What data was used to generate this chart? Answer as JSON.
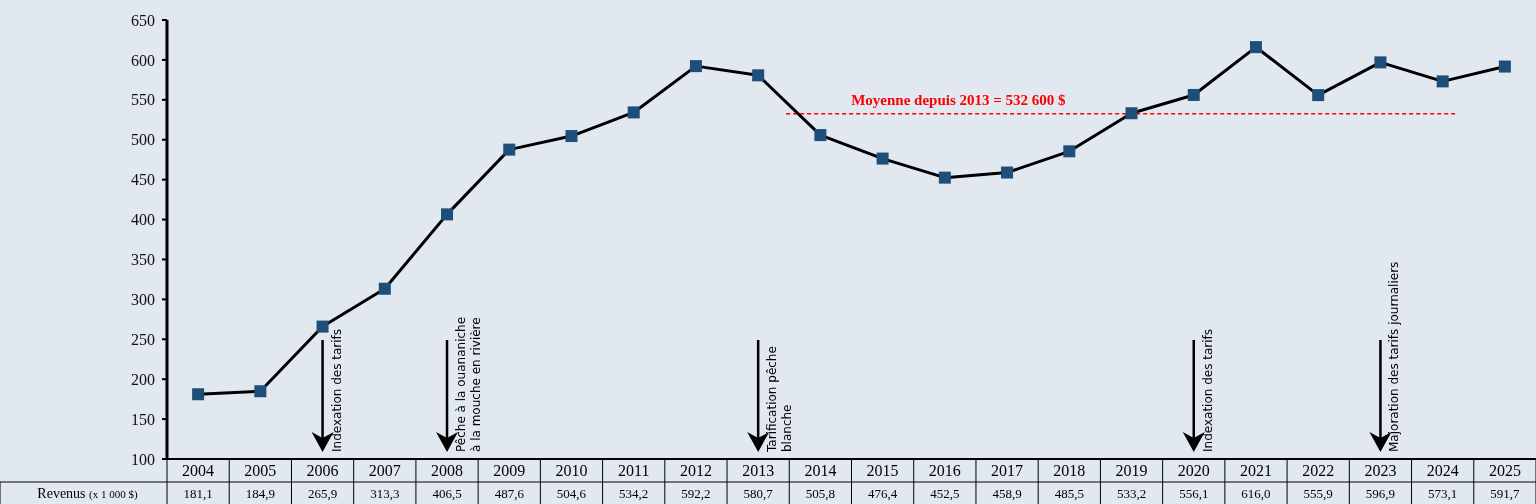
{
  "chart_data": {
    "type": "line",
    "categories": [
      "2004",
      "2005",
      "2006",
      "2007",
      "2008",
      "2009",
      "2010",
      "2011",
      "2012",
      "2013",
      "2014",
      "2015",
      "2016",
      "2017",
      "2018",
      "2019",
      "2020",
      "2021",
      "2022",
      "2023",
      "2024",
      "2025"
    ],
    "series": [
      {
        "name": "Revenus (x 1 000 $)",
        "color": "#000000",
        "colors": [
          "#1f4e79",
          "#1f4e79",
          "#1f4e79",
          "#1f4e79",
          "#1f4e79",
          "#1f4e79",
          "#1f4e79",
          "#1f4e79",
          "#1f4e79",
          "#1f4e79",
          "#1f4e79",
          "#1f4e79",
          "#1f4e79",
          "#1f4e79",
          "#1f4e79",
          "#1f4e79",
          "#1f4e79",
          "#1f4e79",
          "#1f4e79",
          "#1f4e79",
          "#1f4e79",
          "#1f4e79"
        ],
        "values": [
          181.1,
          184.9,
          265.9,
          313.3,
          406.5,
          487.6,
          504.6,
          534.2,
          592.2,
          580.7,
          505.8,
          476.4,
          452.5,
          458.9,
          485.5,
          533.2,
          556.1,
          616.0,
          555.9,
          596.9,
          573.1,
          591.7
        ],
        "value_labels": [
          "181,1",
          "184,9",
          "265,9",
          "313,3",
          "406,5",
          "487,6",
          "504,6",
          "534,2",
          "592,2",
          "580,7",
          "505,8",
          "476,4",
          "452,5",
          "458,9",
          "485,5",
          "533,2",
          "556,1",
          "616,0",
          "555,9",
          "596,9",
          "573,1",
          "591,7"
        ]
      }
    ],
    "ylim": [
      100,
      650
    ],
    "yticks": [
      100,
      150,
      200,
      250,
      300,
      350,
      400,
      450,
      500,
      550,
      600,
      650
    ],
    "marker": "square",
    "line_style": "solid",
    "grid": false,
    "ref_lines": [
      {
        "axis": "y",
        "value": 532.6,
        "label": "Moyenne depuis 2013 = 532 600 $",
        "color": "#ff0000",
        "line_style": "dashed"
      }
    ],
    "annotations": [
      "Indexation des tarifs",
      "Pêche à la ouananiche\nà la mouche en rivière",
      "Tarification pêche\nblanche",
      "Indexation des tarifs",
      "Majoration des tarifs journaliers"
    ]
  }
}
